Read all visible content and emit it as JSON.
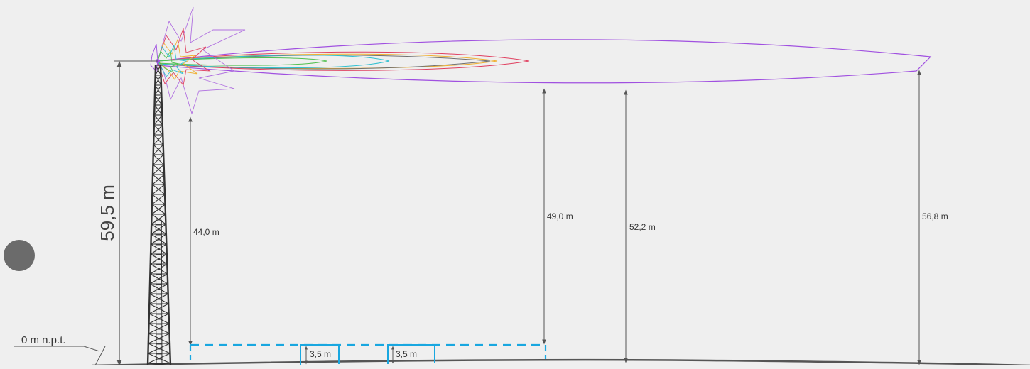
{
  "diagram": {
    "tower_height_label": "59,5 m",
    "ground_level_label": "0 m n.p.t.",
    "dimensions": [
      {
        "id": "h44",
        "label": "44,0 m"
      },
      {
        "id": "h49",
        "label": "49,0 m"
      },
      {
        "id": "h52",
        "label": "52,2 m"
      },
      {
        "id": "h56",
        "label": "56,8 m"
      }
    ],
    "building_heights": [
      {
        "id": "b1",
        "label": "3,5 m"
      },
      {
        "id": "b2",
        "label": "3,5 m"
      }
    ],
    "colors": {
      "background": "#efefef",
      "tower": "#333333",
      "dimension_line": "#555555",
      "main_lobe": "#a050e0",
      "zone_outline": "#19a7e0",
      "marker_dot": "#6b6b6b"
    },
    "lobe_colors": [
      "#a050e0",
      "#e04060",
      "#f0b030",
      "#30c0d0",
      "#50c050",
      "#c080e0",
      "#808080"
    ]
  }
}
